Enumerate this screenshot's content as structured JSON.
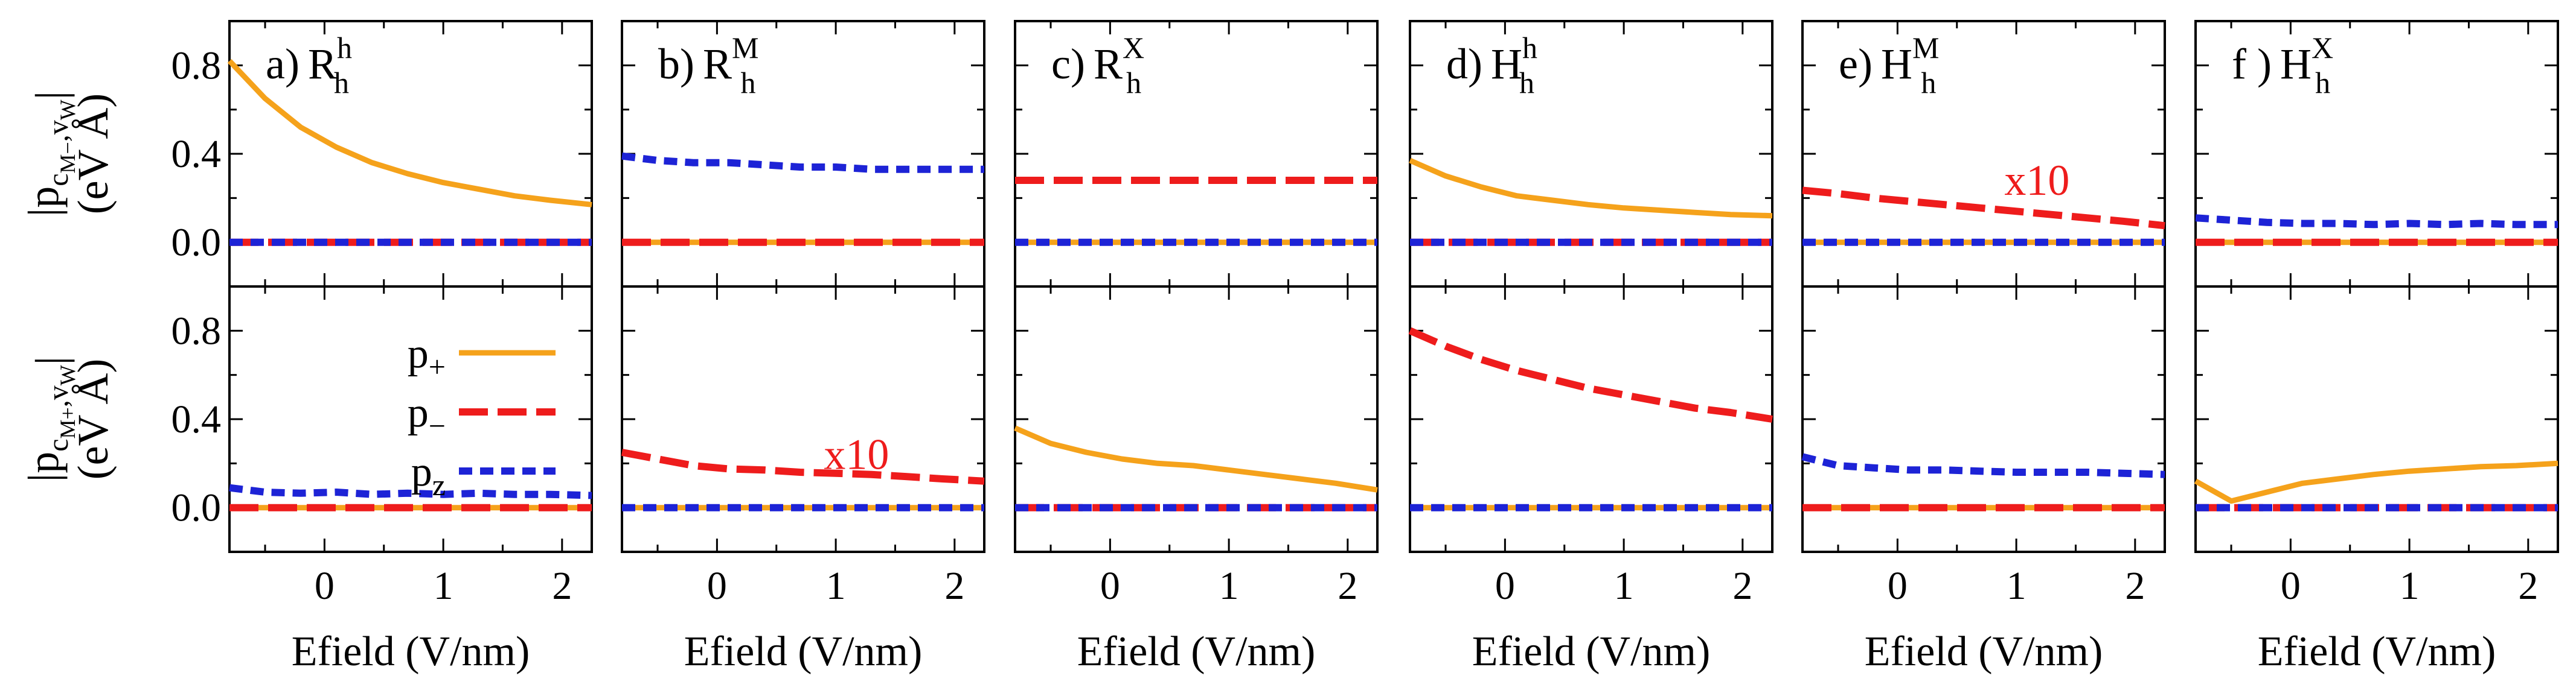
{
  "chart_data": {
    "type": "line",
    "x_label": "Efield (V/nm)",
    "x_range": [
      -0.8,
      2.25
    ],
    "x_ticks": [
      0,
      1,
      2
    ],
    "y_range": [
      -0.2,
      1.0
    ],
    "y_ticks": [
      0.0,
      0.4,
      0.8
    ],
    "y_tick_labels": [
      "0.0",
      "0.4",
      "0.8"
    ],
    "row_ylabels": [
      {
        "prefix": "|p",
        "sub": "c",
        "subsub": "M−",
        "sub2": ",v",
        "subsub2": "W",
        "suffix": "|",
        "unit": "(eV Å)"
      },
      {
        "prefix": "|p",
        "sub": "c",
        "subsub": "M+",
        "sub2": ",v",
        "subsub2": "W",
        "suffix": "|",
        "unit": "(eV Å)"
      }
    ],
    "legend": [
      {
        "key": "p_plus",
        "label": "p",
        "sub": "+"
      },
      {
        "key": "p_minus",
        "label": "p",
        "sub": "−"
      },
      {
        "key": "p_z",
        "label": "p",
        "sub": "z"
      }
    ],
    "colors": {
      "p_plus": "#f5a21b",
      "p_minus": "#ee1c1c",
      "p_z": "#1d23d6",
      "annotation": "#ee1c1c"
    },
    "x": [
      -0.8,
      -0.5,
      -0.2,
      0.1,
      0.4,
      0.7,
      1.0,
      1.3,
      1.6,
      1.9,
      2.25
    ],
    "panels": [
      {
        "letter": "a)",
        "base": "R",
        "sub": "h",
        "sup": "h",
        "rows": [
          {
            "p_plus": [
              0.82,
              0.65,
              0.52,
              0.43,
              0.36,
              0.31,
              0.27,
              0.24,
              0.21,
              0.19,
              0.17
            ],
            "p_minus": [
              0,
              0,
              0,
              0,
              0,
              0,
              0,
              0,
              0,
              0,
              0
            ],
            "p_z": [
              0,
              0,
              0,
              0,
              0,
              0,
              0,
              0,
              0,
              0,
              0
            ]
          },
          {
            "p_plus": [
              0,
              0,
              0,
              0,
              0,
              0,
              0,
              0,
              0,
              0,
              0
            ],
            "p_minus": [
              0,
              0,
              0,
              0,
              0,
              0,
              0,
              0,
              0,
              0,
              0
            ],
            "p_z": [
              0.09,
              0.07,
              0.065,
              0.07,
              0.06,
              0.065,
              0.06,
              0.065,
              0.06,
              0.06,
              0.055
            ]
          }
        ]
      },
      {
        "letter": "b)",
        "base": "R",
        "sub": "h",
        "sup": "M",
        "rows": [
          {
            "p_plus": [
              0,
              0,
              0,
              0,
              0,
              0,
              0,
              0,
              0,
              0,
              0
            ],
            "p_minus": [
              0,
              0,
              0,
              0,
              0,
              0,
              0,
              0,
              0,
              0,
              0
            ],
            "p_z": [
              0.39,
              0.37,
              0.36,
              0.36,
              0.35,
              0.34,
              0.34,
              0.33,
              0.33,
              0.33,
              0.33
            ]
          },
          {
            "p_plus": [
              0,
              0,
              0,
              0,
              0,
              0,
              0,
              0,
              0,
              0,
              0
            ],
            "p_minus": [
              0.25,
              0.22,
              0.19,
              0.175,
              0.17,
              0.16,
              0.155,
              0.15,
              0.14,
              0.13,
              0.12
            ],
            "p_z": [
              0,
              0,
              0,
              0,
              0,
              0,
              0,
              0,
              0,
              0,
              0
            ],
            "annotation": {
              "text": "x10",
              "x": 0.9,
              "y": 0.24
            }
          }
        ]
      },
      {
        "letter": "c)",
        "base": "R",
        "sub": "h",
        "sup": "X",
        "rows": [
          {
            "p_plus": [
              0,
              0,
              0,
              0,
              0,
              0,
              0,
              0,
              0,
              0,
              0
            ],
            "p_minus": [
              0.28,
              0.28,
              0.28,
              0.28,
              0.28,
              0.28,
              0.28,
              0.28,
              0.28,
              0.28,
              0.28
            ],
            "p_z": [
              0,
              0,
              0,
              0,
              0,
              0,
              0,
              0,
              0,
              0,
              0
            ]
          },
          {
            "p_plus": [
              0.36,
              0.29,
              0.25,
              0.22,
              0.2,
              0.19,
              0.17,
              0.15,
              0.13,
              0.11,
              0.08
            ],
            "p_minus": [
              0,
              0,
              0,
              0,
              0,
              0,
              0,
              0,
              0,
              0,
              0
            ],
            "p_z": [
              0,
              0,
              0,
              0,
              0,
              0,
              0,
              0,
              0,
              0,
              0
            ]
          }
        ]
      },
      {
        "letter": "d)",
        "base": "H",
        "sub": "h",
        "sup": "h",
        "rows": [
          {
            "p_plus": [
              0.37,
              0.3,
              0.25,
              0.21,
              0.19,
              0.17,
              0.155,
              0.145,
              0.135,
              0.125,
              0.12
            ],
            "p_minus": [
              0,
              0,
              0,
              0,
              0,
              0,
              0,
              0,
              0,
              0,
              0
            ],
            "p_z": [
              0,
              0,
              0,
              0,
              0,
              0,
              0,
              0,
              0,
              0,
              0
            ]
          },
          {
            "p_plus": [
              0,
              0,
              0,
              0,
              0,
              0,
              0,
              0,
              0,
              0,
              0
            ],
            "p_minus": [
              0.8,
              0.73,
              0.67,
              0.62,
              0.58,
              0.54,
              0.51,
              0.48,
              0.45,
              0.43,
              0.4
            ],
            "p_z": [
              0,
              0,
              0,
              0,
              0,
              0,
              0,
              0,
              0,
              0,
              0
            ]
          }
        ]
      },
      {
        "letter": "e)",
        "base": "H",
        "sub": "h",
        "sup": "M",
        "rows": [
          {
            "p_plus": [
              0,
              0,
              0,
              0,
              0,
              0,
              0,
              0,
              0,
              0,
              0
            ],
            "p_minus": [
              0.235,
              0.22,
              0.2,
              0.185,
              0.17,
              0.155,
              0.14,
              0.125,
              0.11,
              0.095,
              0.075
            ],
            "p_z": [
              0,
              0,
              0,
              0,
              0,
              0,
              0,
              0,
              0,
              0,
              0
            ],
            "annotation": {
              "text": "x10",
              "x": 0.9,
              "y": 0.28
            }
          },
          {
            "p_plus": [
              0,
              0,
              0,
              0,
              0,
              0,
              0,
              0,
              0,
              0,
              0
            ],
            "p_minus": [
              0,
              0,
              0,
              0,
              0,
              0,
              0,
              0,
              0,
              0,
              0
            ],
            "p_z": [
              0.23,
              0.19,
              0.18,
              0.17,
              0.17,
              0.165,
              0.16,
              0.16,
              0.16,
              0.155,
              0.15
            ]
          }
        ]
      },
      {
        "letter": "f )",
        "base": "H",
        "sub": "h",
        "sup": "X",
        "rows": [
          {
            "p_plus": [
              0,
              0,
              0,
              0,
              0,
              0,
              0,
              0,
              0,
              0,
              0
            ],
            "p_minus": [
              0,
              0,
              0,
              0,
              0,
              0,
              0,
              0,
              0,
              0,
              0
            ],
            "p_z": [
              0.11,
              0.1,
              0.09,
              0.085,
              0.085,
              0.08,
              0.085,
              0.08,
              0.085,
              0.08,
              0.08
            ]
          },
          {
            "p_plus": [
              0.12,
              0.03,
              0.07,
              0.11,
              0.13,
              0.15,
              0.165,
              0.175,
              0.185,
              0.19,
              0.2
            ],
            "p_minus": [
              0,
              0,
              0,
              0,
              0,
              0,
              0,
              0,
              0,
              0,
              0
            ],
            "p_z": [
              0,
              0,
              0,
              0,
              0,
              0,
              0,
              0,
              0,
              0,
              0
            ]
          }
        ]
      }
    ]
  }
}
